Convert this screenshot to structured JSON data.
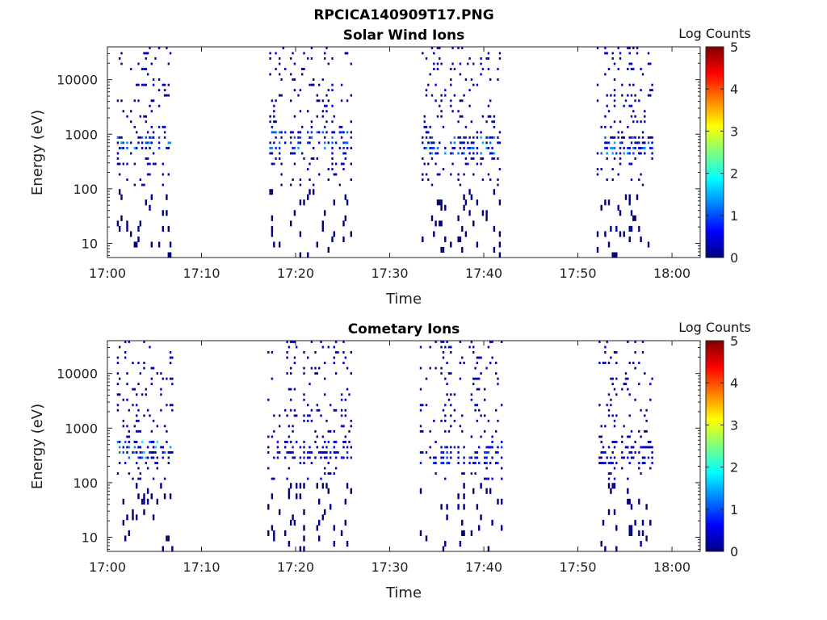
{
  "figure": {
    "suptitle": "RPCICA140909T17.PNG"
  },
  "colorscale": [
    "#00007f",
    "#0000ff",
    "#007fff",
    "#00ffff",
    "#7fff7f",
    "#ffff00",
    "#ff7f00",
    "#ff0000",
    "#7f0000"
  ],
  "chart_data": [
    {
      "type": "heatmap",
      "title": "Solar Wind Ions",
      "xlabel": "Time",
      "ylabel": "Energy (eV)",
      "xticks": [
        "17:00",
        "17:10",
        "17:20",
        "17:30",
        "17:40",
        "17:50",
        "18:00"
      ],
      "yticks": [
        "10",
        "100",
        "1000",
        "10000"
      ],
      "xlim": [
        "17:00",
        "18:03"
      ],
      "ylim": [
        5.5,
        40000
      ],
      "yscale": "log",
      "colorbar": {
        "label": "Log Counts",
        "range": [
          0,
          5
        ],
        "ticks": [
          "0",
          "1",
          "2",
          "3",
          "4",
          "5"
        ]
      },
      "data_bursts": [
        {
          "start": "17:01",
          "end": "17:07",
          "peak_energy_ev": 650,
          "peak_log_counts": 1.6
        },
        {
          "start": "17:17",
          "end": "17:26",
          "peak_energy_ev": 700,
          "peak_log_counts": 1.4
        },
        {
          "start": "17:33",
          "end": "17:42",
          "peak_energy_ev": 550,
          "peak_log_counts": 1.5
        },
        {
          "start": "17:52",
          "end": "17:58",
          "peak_energy_ev": 620,
          "peak_log_counts": 1.4
        }
      ]
    },
    {
      "type": "heatmap",
      "title": "Cometary Ions",
      "xlabel": "Time",
      "ylabel": "Energy (eV)",
      "xticks": [
        "17:00",
        "17:10",
        "17:20",
        "17:30",
        "17:40",
        "17:50",
        "18:00"
      ],
      "yticks": [
        "10",
        "100",
        "1000",
        "10000"
      ],
      "xlim": [
        "17:00",
        "18:03"
      ],
      "ylim": [
        5.5,
        40000
      ],
      "yscale": "log",
      "colorbar": {
        "label": "Log Counts",
        "range": [
          0,
          5
        ],
        "ticks": [
          "0",
          "1",
          "2",
          "3",
          "4",
          "5"
        ]
      },
      "data_bursts": [
        {
          "start": "17:01",
          "end": "17:07",
          "peak_energy_ev": 400,
          "peak_log_counts": 1.8
        },
        {
          "start": "17:17",
          "end": "17:26",
          "peak_energy_ev": 400,
          "peak_log_counts": 0.8
        },
        {
          "start": "17:33",
          "end": "17:42",
          "peak_energy_ev": 300,
          "peak_log_counts": 1.0
        },
        {
          "start": "17:52",
          "end": "17:58",
          "peak_energy_ev": 300,
          "peak_log_counts": 0.6
        }
      ]
    }
  ]
}
